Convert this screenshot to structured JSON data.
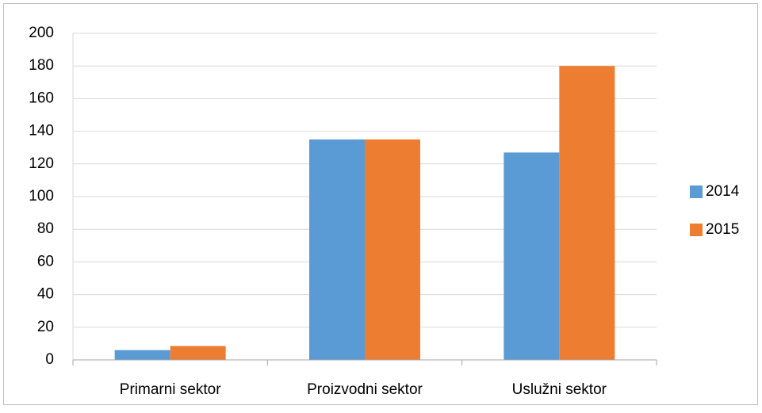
{
  "chart_data": {
    "type": "bar",
    "categories": [
      "Primarni sektor",
      "Proizvodni sektor",
      "Uslužni sektor"
    ],
    "series": [
      {
        "name": "2014",
        "color": "#5b9bd5",
        "values": [
          6,
          135,
          127
        ]
      },
      {
        "name": "2015",
        "color": "#ed7d31",
        "values": [
          8.5,
          135,
          180
        ]
      }
    ],
    "ylim": [
      0,
      200
    ],
    "yticks": [
      0,
      20,
      40,
      60,
      80,
      100,
      120,
      140,
      160,
      180,
      200
    ],
    "grid": true,
    "legend": "right"
  }
}
